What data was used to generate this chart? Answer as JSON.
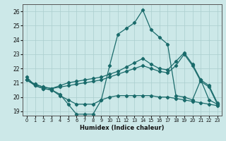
{
  "xlabel": "Humidex (Indice chaleur)",
  "xlim": [
    -0.5,
    23.5
  ],
  "ylim": [
    18.7,
    26.5
  ],
  "yticks": [
    19,
    20,
    21,
    22,
    23,
    24,
    25,
    26
  ],
  "xticks": [
    0,
    1,
    2,
    3,
    4,
    5,
    6,
    7,
    8,
    9,
    10,
    11,
    12,
    13,
    14,
    15,
    16,
    17,
    18,
    19,
    20,
    21,
    22,
    23
  ],
  "bg_color": "#cce8e8",
  "line_color": "#1a6b6b",
  "grid_color": "#aacece",
  "line1_volatile": {
    "x": [
      0,
      1,
      2,
      3,
      4,
      5,
      6,
      7,
      8,
      9,
      10,
      11,
      12,
      13,
      14,
      15,
      16,
      17,
      18,
      19,
      20,
      21,
      22,
      23
    ],
    "y": [
      21.4,
      20.8,
      20.6,
      20.5,
      20.2,
      19.5,
      18.8,
      18.8,
      18.8,
      19.8,
      22.2,
      24.4,
      24.8,
      25.2,
      26.1,
      24.7,
      24.2,
      23.7,
      20.1,
      20.0,
      19.8,
      21.2,
      19.8,
      19.5
    ]
  },
  "line2_upper": {
    "x": [
      0,
      1,
      2,
      3,
      4,
      5,
      6,
      7,
      8,
      9,
      10,
      11,
      12,
      13,
      14,
      15,
      16,
      17,
      18,
      19,
      20,
      21,
      22,
      23
    ],
    "y": [
      21.2,
      20.9,
      20.7,
      20.6,
      20.7,
      20.8,
      20.9,
      21.0,
      21.1,
      21.2,
      21.4,
      21.6,
      21.8,
      22.0,
      22.2,
      22.0,
      21.8,
      21.7,
      22.2,
      23.0,
      22.2,
      21.1,
      20.7,
      19.5
    ]
  },
  "line3_mid": {
    "x": [
      0,
      1,
      2,
      3,
      4,
      5,
      6,
      7,
      8,
      9,
      10,
      11,
      12,
      13,
      14,
      15,
      16,
      17,
      18,
      19,
      20,
      21,
      22,
      23
    ],
    "y": [
      21.2,
      20.9,
      20.7,
      20.6,
      20.8,
      21.0,
      21.1,
      21.2,
      21.3,
      21.4,
      21.6,
      21.8,
      22.1,
      22.4,
      22.7,
      22.3,
      22.0,
      21.9,
      22.5,
      23.1,
      22.3,
      21.2,
      20.8,
      19.6
    ]
  },
  "line4_bottom": {
    "x": [
      0,
      1,
      2,
      3,
      4,
      5,
      6,
      7,
      8,
      9,
      10,
      11,
      12,
      13,
      14,
      15,
      16,
      17,
      18,
      19,
      20,
      21,
      22,
      23
    ],
    "y": [
      21.2,
      20.8,
      20.6,
      20.5,
      20.1,
      19.8,
      19.5,
      19.5,
      19.5,
      19.8,
      20.0,
      20.1,
      20.1,
      20.1,
      20.1,
      20.1,
      20.0,
      20.0,
      19.9,
      19.8,
      19.7,
      19.6,
      19.5,
      19.4
    ]
  }
}
